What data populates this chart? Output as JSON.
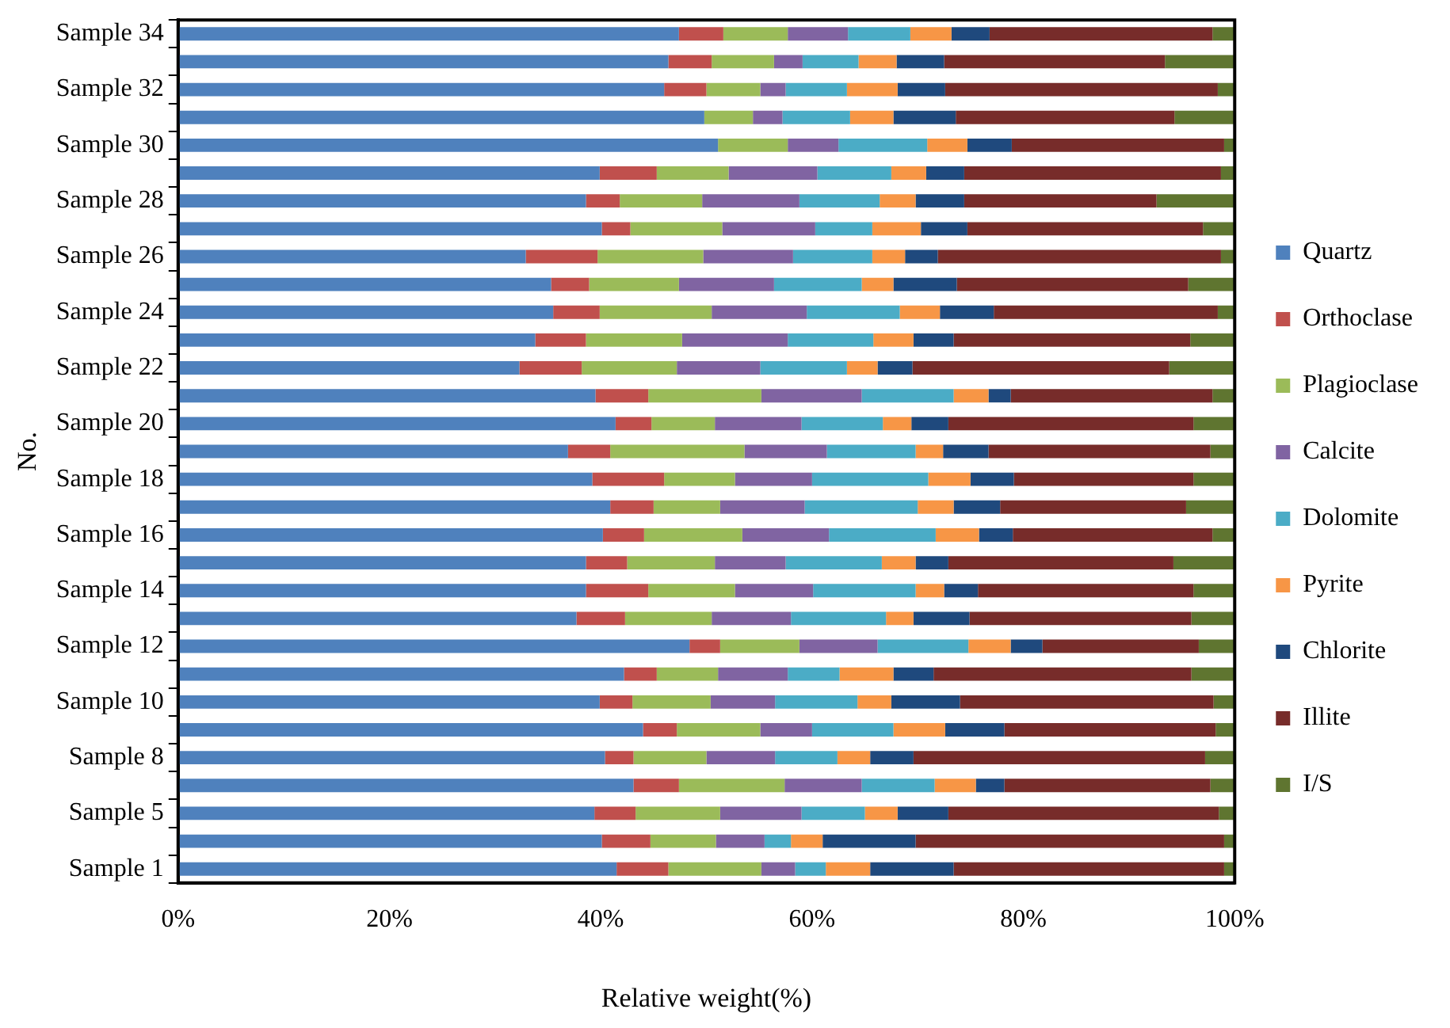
{
  "chart_data": {
    "type": "bar",
    "orientation": "horizontal",
    "stacked": true,
    "xlabel": "Relative weight(%)",
    "ylabel": "No.",
    "legend": "right",
    "grid": false,
    "categories": [
      "Sample 34",
      null,
      "Sample 32",
      null,
      "Sample 30",
      null,
      "Sample 28",
      null,
      "Sample 26",
      null,
      "Sample 24",
      null,
      "Sample 22",
      null,
      "Sample 20",
      null,
      "Sample 18",
      null,
      "Sample 16",
      null,
      "Sample 14",
      null,
      "Sample 12",
      null,
      "Sample 10",
      null,
      "Sample 8",
      null,
      "Sample 5",
      null,
      "Sample 1"
    ],
    "xlim": [
      0,
      100
    ],
    "xticks": [
      {
        "value": 0,
        "label": "0%"
      },
      {
        "value": 20,
        "label": "20%"
      },
      {
        "value": 40,
        "label": "40%"
      },
      {
        "value": 60,
        "label": "60%"
      },
      {
        "value": 80,
        "label": "80%"
      },
      {
        "value": 100,
        "label": "100%"
      }
    ],
    "series": [
      {
        "name": "Quartz",
        "color": "#4f81bd",
        "values": [
          47.4,
          46.4,
          46.0,
          49.8,
          51.1,
          39.9,
          38.6,
          40.1,
          32.9,
          35.3,
          35.5,
          33.8,
          32.3,
          39.5,
          41.4,
          36.9,
          39.2,
          40.9,
          40.2,
          38.6,
          38.6,
          37.7,
          48.4,
          42.2,
          39.9,
          44.0,
          40.4,
          43.1,
          39.4,
          40.1,
          41.5
        ]
      },
      {
        "name": "Orthoclase",
        "color": "#c0504d",
        "values": [
          4.2,
          4.1,
          4.0,
          0,
          0,
          5.4,
          3.2,
          2.7,
          6.8,
          3.6,
          4.4,
          4.8,
          5.9,
          5.0,
          3.4,
          4.0,
          6.8,
          4.1,
          3.9,
          3.9,
          5.9,
          4.6,
          2.9,
          3.1,
          3.1,
          3.2,
          2.7,
          4.3,
          3.9,
          4.6,
          4.9
        ]
      },
      {
        "name": "Plagioclase",
        "color": "#9bbb59",
        "values": [
          6.1,
          5.9,
          5.1,
          4.6,
          6.6,
          6.8,
          7.8,
          8.7,
          10.0,
          8.5,
          10.6,
          9.1,
          9.0,
          10.7,
          6.0,
          12.7,
          6.7,
          6.3,
          9.3,
          8.3,
          8.2,
          8.2,
          7.5,
          5.8,
          7.4,
          7.9,
          6.9,
          10.0,
          8.0,
          6.2,
          8.8
        ]
      },
      {
        "name": "Calcite",
        "color": "#8064a2",
        "values": [
          5.7,
          2.7,
          2.4,
          2.8,
          4.8,
          8.4,
          9.2,
          8.8,
          8.5,
          9.0,
          9.0,
          10.0,
          7.9,
          9.5,
          8.2,
          7.8,
          7.3,
          8.0,
          8.2,
          6.7,
          7.4,
          7.5,
          7.4,
          6.6,
          6.1,
          4.9,
          6.5,
          7.3,
          7.7,
          4.6,
          3.2
        ]
      },
      {
        "name": "Dolomite",
        "color": "#4bacc6",
        "values": [
          5.9,
          5.3,
          5.8,
          6.4,
          8.4,
          7.0,
          7.6,
          5.4,
          7.5,
          8.3,
          8.8,
          8.1,
          8.2,
          8.7,
          7.7,
          8.4,
          11.0,
          10.7,
          10.1,
          9.1,
          9.7,
          9.0,
          8.6,
          4.9,
          7.8,
          7.7,
          5.9,
          6.9,
          6.0,
          2.5,
          2.9
        ]
      },
      {
        "name": "Pyrite",
        "color": "#f79646",
        "values": [
          3.9,
          3.6,
          4.8,
          4.1,
          3.8,
          3.3,
          3.4,
          4.6,
          3.1,
          3.0,
          3.8,
          3.8,
          2.9,
          3.3,
          2.7,
          2.6,
          4.0,
          3.4,
          4.1,
          3.2,
          2.7,
          2.6,
          4.0,
          5.1,
          3.2,
          4.9,
          3.1,
          3.9,
          3.1,
          3.0,
          4.2
        ]
      },
      {
        "name": "Chlorite",
        "color": "#1f497d",
        "values": [
          3.6,
          4.5,
          4.5,
          5.9,
          4.2,
          3.6,
          4.6,
          4.4,
          3.1,
          6.0,
          5.1,
          3.8,
          3.3,
          2.1,
          3.5,
          4.3,
          4.1,
          4.4,
          3.2,
          3.1,
          3.2,
          5.3,
          3.0,
          3.8,
          6.5,
          5.6,
          4.1,
          2.7,
          4.8,
          8.8,
          7.9
        ]
      },
      {
        "name": "Illite",
        "color": "#772c2a",
        "values": [
          21.1,
          20.9,
          25.8,
          20.7,
          20.1,
          24.3,
          18.2,
          22.3,
          26.8,
          21.9,
          21.2,
          22.4,
          24.3,
          19.1,
          23.2,
          21.0,
          17.0,
          17.6,
          18.9,
          21.3,
          20.4,
          21.0,
          14.8,
          24.4,
          24.0,
          20.0,
          27.6,
          19.5,
          25.6,
          29.2,
          25.6
        ]
      },
      {
        "name": "I/S",
        "color": "#5f7530",
        "values": [
          2.1,
          6.6,
          1.6,
          5.7,
          1.0,
          1.3,
          7.4,
          3.0,
          1.3,
          4.4,
          1.6,
          4.2,
          6.2,
          2.1,
          3.9,
          2.3,
          3.9,
          4.6,
          2.1,
          5.8,
          3.9,
          4.1,
          3.4,
          4.1,
          2.0,
          1.8,
          2.8,
          2.3,
          1.5,
          1.0,
          1.0
        ]
      }
    ]
  }
}
